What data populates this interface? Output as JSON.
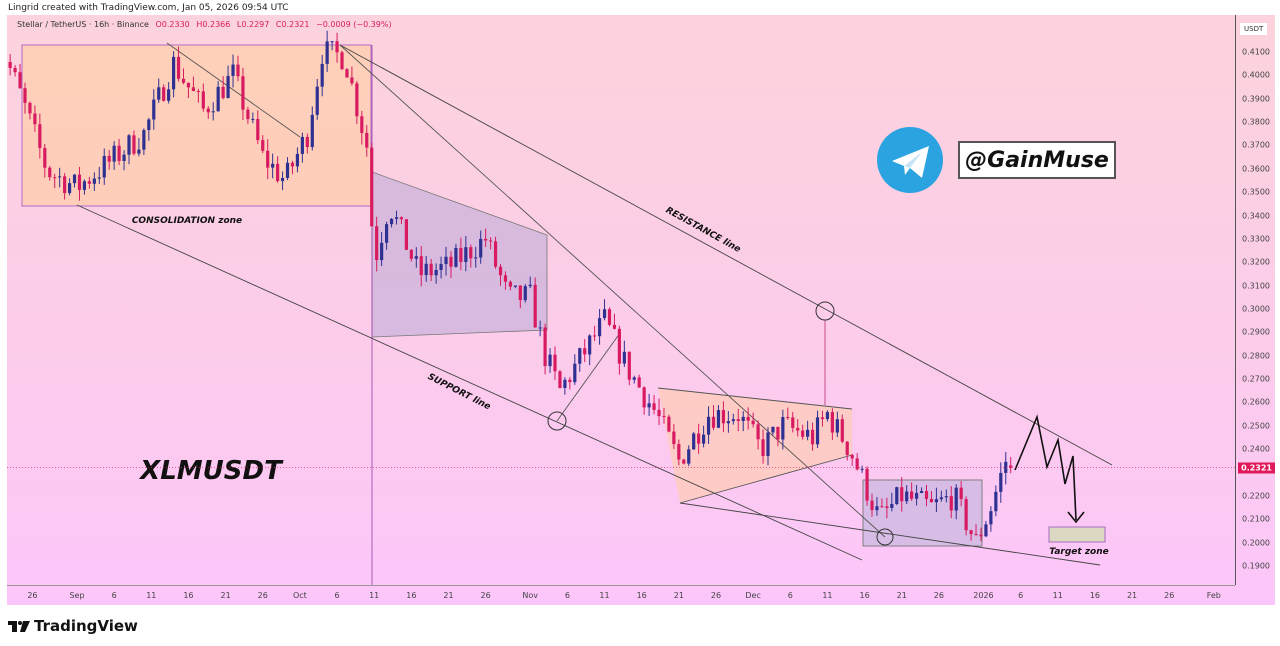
{
  "credit": "Lingrid created with TradingView.com, Jan 05, 2026 09:54 UTC",
  "legend": {
    "symbol": "Stellar / TetherUS · 16h · Binance",
    "open": "O0.2330",
    "high": "H0.2366",
    "low": "L0.2297",
    "close": "C0.2321",
    "change": "−0.0009 (−0.39%)"
  },
  "annotations": {
    "consolidation": "CONSOLIDATION zone",
    "support": "SUPPORT line",
    "resistance": "RESISTANCE line",
    "ticker": "XLMUSDT",
    "target": "Target zone",
    "handle": "@GainMuse"
  },
  "footer": {
    "brand": "TradingView"
  },
  "colors": {
    "up": "#2e3192",
    "down": "#d81b60",
    "price_tag": "#e0195a",
    "telegram": "#2aa3e0"
  },
  "icons": [
    "telegram-icon",
    "tradingview-logo-icon"
  ],
  "chart_data": {
    "type": "candlestick",
    "interval": "16h",
    "yaxis_unit": "USDT",
    "ylim": [
      0.185,
      0.42
    ],
    "y_ticks": [
      "0.4100",
      "0.4000",
      "0.3900",
      "0.3800",
      "0.3700",
      "0.3600",
      "0.3500",
      "0.3400",
      "0.3300",
      "0.3200",
      "0.3100",
      "0.3000",
      "0.2900",
      "0.2800",
      "0.2700",
      "0.2600",
      "0.2500",
      "0.2400",
      "0.2200",
      "0.2100",
      "0.2000",
      "0.1900"
    ],
    "x_ticks": [
      {
        "date": "2025-08-26",
        "label": "26"
      },
      {
        "date": "2025-09-01",
        "label": "Sep"
      },
      {
        "date": "2025-09-06",
        "label": "6"
      },
      {
        "date": "2025-09-11",
        "label": "11"
      },
      {
        "date": "2025-09-16",
        "label": "16"
      },
      {
        "date": "2025-09-21",
        "label": "21"
      },
      {
        "date": "2025-09-26",
        "label": "26"
      },
      {
        "date": "2025-10-01",
        "label": "Oct"
      },
      {
        "date": "2025-10-06",
        "label": "6"
      },
      {
        "date": "2025-10-11",
        "label": "11"
      },
      {
        "date": "2025-10-16",
        "label": "16"
      },
      {
        "date": "2025-10-21",
        "label": "21"
      },
      {
        "date": "2025-10-26",
        "label": "26"
      },
      {
        "date": "2025-11-01",
        "label": "Nov"
      },
      {
        "date": "2025-11-06",
        "label": "6"
      },
      {
        "date": "2025-11-11",
        "label": "11"
      },
      {
        "date": "2025-11-16",
        "label": "16"
      },
      {
        "date": "2025-11-21",
        "label": "21"
      },
      {
        "date": "2025-11-26",
        "label": "26"
      },
      {
        "date": "2025-12-01",
        "label": "Dec"
      },
      {
        "date": "2025-12-06",
        "label": "6"
      },
      {
        "date": "2025-12-11",
        "label": "11"
      },
      {
        "date": "2025-12-16",
        "label": "16"
      },
      {
        "date": "2025-12-21",
        "label": "21"
      },
      {
        "date": "2025-12-26",
        "label": "26"
      },
      {
        "date": "2026-01-01",
        "label": "2026"
      },
      {
        "date": "2026-01-06",
        "label": "6"
      },
      {
        "date": "2026-01-11",
        "label": "11"
      },
      {
        "date": "2026-01-16",
        "label": "16"
      },
      {
        "date": "2026-01-21",
        "label": "21"
      },
      {
        "date": "2026-01-26",
        "label": "26"
      },
      {
        "date": "2026-02-01",
        "label": "Feb"
      }
    ],
    "close_path": [
      [
        "2025-08-21",
        0.418
      ],
      [
        "2025-08-24",
        0.395
      ],
      [
        "2025-08-28",
        0.359
      ],
      [
        "2025-09-01",
        0.352
      ],
      [
        "2025-09-05",
        0.362
      ],
      [
        "2025-09-10",
        0.375
      ],
      [
        "2025-09-14",
        0.405
      ],
      [
        "2025-09-18",
        0.385
      ],
      [
        "2025-09-22",
        0.4
      ],
      [
        "2025-09-26",
        0.365
      ],
      [
        "2025-09-29",
        0.355
      ],
      [
        "2025-10-02",
        0.375
      ],
      [
        "2025-10-04",
        0.41
      ],
      [
        "2025-10-07",
        0.408
      ],
      [
        "2025-10-10",
        0.37
      ],
      [
        "2025-10-11",
        0.32
      ],
      [
        "2025-10-13",
        0.345
      ],
      [
        "2025-10-17",
        0.315
      ],
      [
        "2025-10-21",
        0.318
      ],
      [
        "2025-10-26",
        0.33
      ],
      [
        "2025-10-29",
        0.305
      ],
      [
        "2025-11-01",
        0.305
      ],
      [
        "2025-11-03",
        0.28
      ],
      [
        "2025-11-05",
        0.265
      ],
      [
        "2025-11-08",
        0.28
      ],
      [
        "2025-11-11",
        0.295
      ],
      [
        "2025-11-14",
        0.275
      ],
      [
        "2025-11-18",
        0.255
      ],
      [
        "2025-11-21",
        0.235
      ],
      [
        "2025-11-25",
        0.255
      ],
      [
        "2025-11-29",
        0.255
      ],
      [
        "2025-12-02",
        0.24
      ],
      [
        "2025-12-05",
        0.25
      ],
      [
        "2025-12-09",
        0.245
      ],
      [
        "2025-12-11",
        0.255
      ],
      [
        "2025-12-14",
        0.24
      ],
      [
        "2025-12-16",
        0.225
      ],
      [
        "2025-12-18",
        0.21
      ],
      [
        "2025-12-21",
        0.22
      ],
      [
        "2025-12-25",
        0.215
      ],
      [
        "2025-12-28",
        0.22
      ],
      [
        "2025-12-31",
        0.2
      ],
      [
        "2026-01-02",
        0.215
      ],
      [
        "2026-01-04",
        0.235
      ],
      [
        "2026-01-05",
        0.2321
      ]
    ],
    "last_candle": {
      "open": 0.233,
      "high": 0.2366,
      "low": 0.2297,
      "close": 0.2321
    },
    "last_price": "0.2321"
  }
}
